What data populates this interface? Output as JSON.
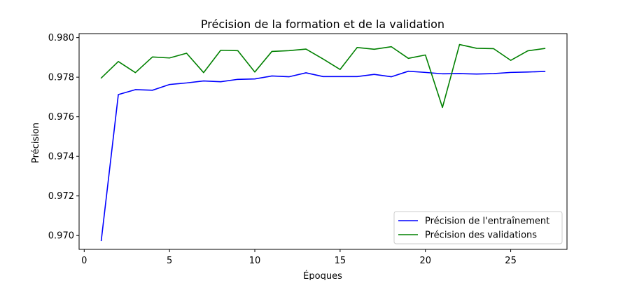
{
  "chart_data": {
    "type": "line",
    "title": "Précision de la formation et de la validation",
    "xlabel": "Époques",
    "ylabel": "Précision",
    "xlim": [
      -0.3,
      28.3
    ],
    "ylim": [
      0.9693,
      0.9802
    ],
    "xticks": [
      0,
      5,
      10,
      15,
      20,
      25
    ],
    "xtick_labels": [
      "0",
      "5",
      "10",
      "15",
      "20",
      "25"
    ],
    "yticks": [
      0.97,
      0.972,
      0.974,
      0.976,
      0.978,
      0.98
    ],
    "ytick_labels": [
      "0.970",
      "0.972",
      "0.974",
      "0.976",
      "0.978",
      "0.980"
    ],
    "grid": false,
    "legend_position": "lower-right",
    "x": [
      1,
      2,
      3,
      4,
      5,
      6,
      7,
      8,
      9,
      10,
      11,
      12,
      13,
      14,
      15,
      16,
      17,
      18,
      19,
      20,
      21,
      22,
      23,
      24,
      25,
      26,
      27
    ],
    "series": [
      {
        "name": "Précision de l'entraînement",
        "color": "#0000ff",
        "values": [
          0.96975,
          0.97712,
          0.97737,
          0.97734,
          0.97763,
          0.97771,
          0.97781,
          0.97777,
          0.97789,
          0.97791,
          0.97806,
          0.97802,
          0.97822,
          0.97803,
          0.97803,
          0.97803,
          0.97814,
          0.97802,
          0.9783,
          0.97824,
          0.97817,
          0.97818,
          0.97816,
          0.97818,
          0.97824,
          0.97826,
          0.97829
        ]
      },
      {
        "name": "Précision des validations",
        "color": "#008000",
        "values": [
          0.97796,
          0.97879,
          0.97823,
          0.97902,
          0.97897,
          0.97921,
          0.97823,
          0.97936,
          0.97934,
          0.97826,
          0.9793,
          0.97934,
          0.97942,
          0.97892,
          0.97839,
          0.9795,
          0.97941,
          0.97954,
          0.97895,
          0.97912,
          0.97647,
          0.97965,
          0.97946,
          0.97944,
          0.97885,
          0.97933,
          0.97945
        ]
      }
    ]
  }
}
